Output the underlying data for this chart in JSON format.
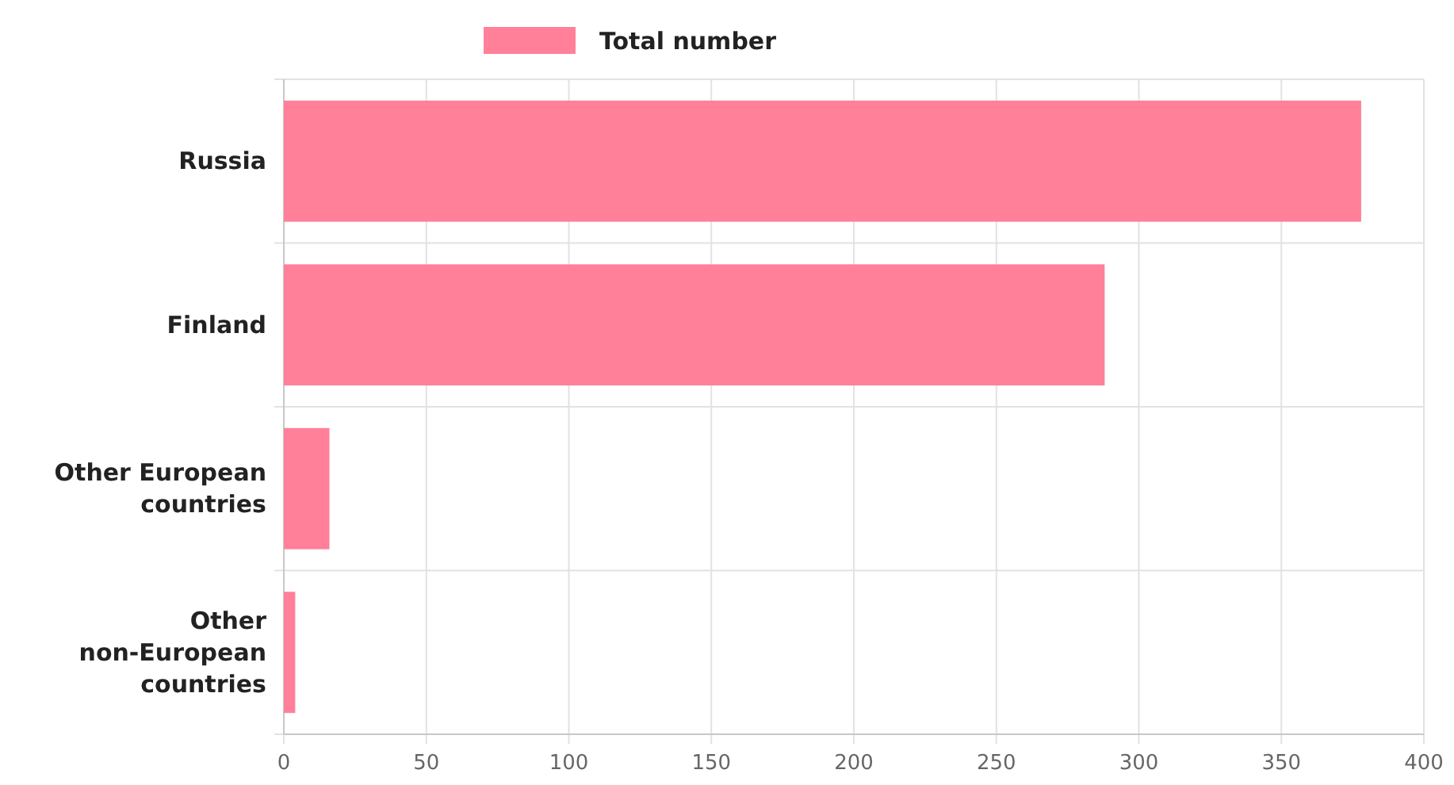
{
  "chart_data": {
    "type": "bar",
    "orientation": "horizontal",
    "categories": [
      "Russia",
      "Finland",
      "Other European countries",
      "Other non-European countries"
    ],
    "series": [
      {
        "name": "Total number",
        "color": "#ff8098",
        "values": [
          378,
          288,
          16,
          4
        ]
      }
    ],
    "xlim": [
      0,
      400
    ],
    "xticks": [
      0,
      50,
      100,
      150,
      200,
      250,
      300,
      350,
      400
    ],
    "grid": true,
    "legend": "top"
  }
}
